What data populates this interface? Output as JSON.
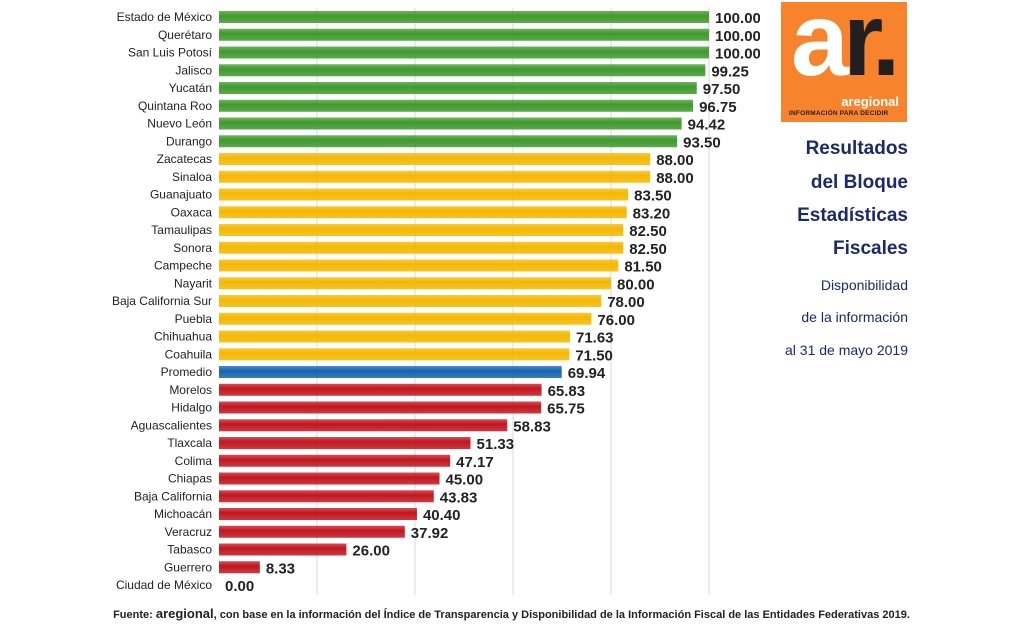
{
  "logo": {
    "mark_a": "a",
    "mark_r": "r.",
    "brand": "aregional",
    "tagline": "INFORMACIÓN PARA DECIDIR"
  },
  "side": {
    "title_lines": [
      "Resultados",
      "del Bloque",
      "Estadísticas",
      "Fiscales"
    ],
    "subtitle_lines": [
      "Disponibilidad",
      "de la información",
      "al 31 de mayo 2019"
    ]
  },
  "footer": {
    "prefix": "Fuente: ",
    "source": "aregional",
    "suffix": ", con base en la información del Índice de Transparencia y Disponibilidad de la Información Fiscal de las Entidades Federativas 2019."
  },
  "chart_data": {
    "type": "bar",
    "orientation": "horizontal",
    "xlim": [
      0,
      100
    ],
    "grid": true,
    "colors": {
      "high": "#3f9a2c",
      "mid": "#f5b800",
      "average": "#1565b0",
      "low": "#c3161f"
    },
    "categories": [
      "Estado de México",
      "Querétaro",
      "San Luis Potosí",
      "Jalisco",
      "Yucatán",
      "Quintana Roo",
      "Nuevo León",
      "Durango",
      "Zacatecas",
      "Sinaloa",
      "Guanajuato",
      "Oaxaca",
      "Tamaulipas",
      "Sonora",
      "Campeche",
      "Nayarit",
      "Baja California Sur",
      "Puebla",
      "Chihuahua",
      "Coahuila",
      "Promedio",
      "Morelos",
      "Hidalgo",
      "Aguascalientes",
      "Tlaxcala",
      "Colima",
      "Chiapas",
      "Baja California",
      "Michoacán",
      "Veracruz",
      "Tabasco",
      "Guerrero",
      "Ciudad de México"
    ],
    "values": [
      100.0,
      100.0,
      100.0,
      99.25,
      97.5,
      96.75,
      94.42,
      93.5,
      88.0,
      88.0,
      83.5,
      83.2,
      82.5,
      82.5,
      81.5,
      80.0,
      78.0,
      76.0,
      71.63,
      71.5,
      69.94,
      65.83,
      65.75,
      58.83,
      51.33,
      47.17,
      45.0,
      43.83,
      40.4,
      37.92,
      26.0,
      8.33,
      0.0
    ],
    "value_labels": [
      "100.00",
      "100.00",
      "100.00",
      "99.25",
      "97.50",
      "96.75",
      "94.42",
      "93.50",
      "88.00",
      "88.00",
      "83.50",
      "83.20",
      "82.50",
      "82.50",
      "81.50",
      "80.00",
      "78.00",
      "76.00",
      "71.63",
      "71.50",
      "69.94",
      "65.83",
      "65.75",
      "58.83",
      "51.33",
      "47.17",
      "45.00",
      "43.83",
      "40.40",
      "37.92",
      "26.00",
      "8.33",
      "0.00"
    ],
    "groups": [
      "high",
      "high",
      "high",
      "high",
      "high",
      "high",
      "high",
      "high",
      "mid",
      "mid",
      "mid",
      "mid",
      "mid",
      "mid",
      "mid",
      "mid",
      "mid",
      "mid",
      "mid",
      "mid",
      "average",
      "low",
      "low",
      "low",
      "low",
      "low",
      "low",
      "low",
      "low",
      "low",
      "low",
      "low",
      "low"
    ]
  }
}
